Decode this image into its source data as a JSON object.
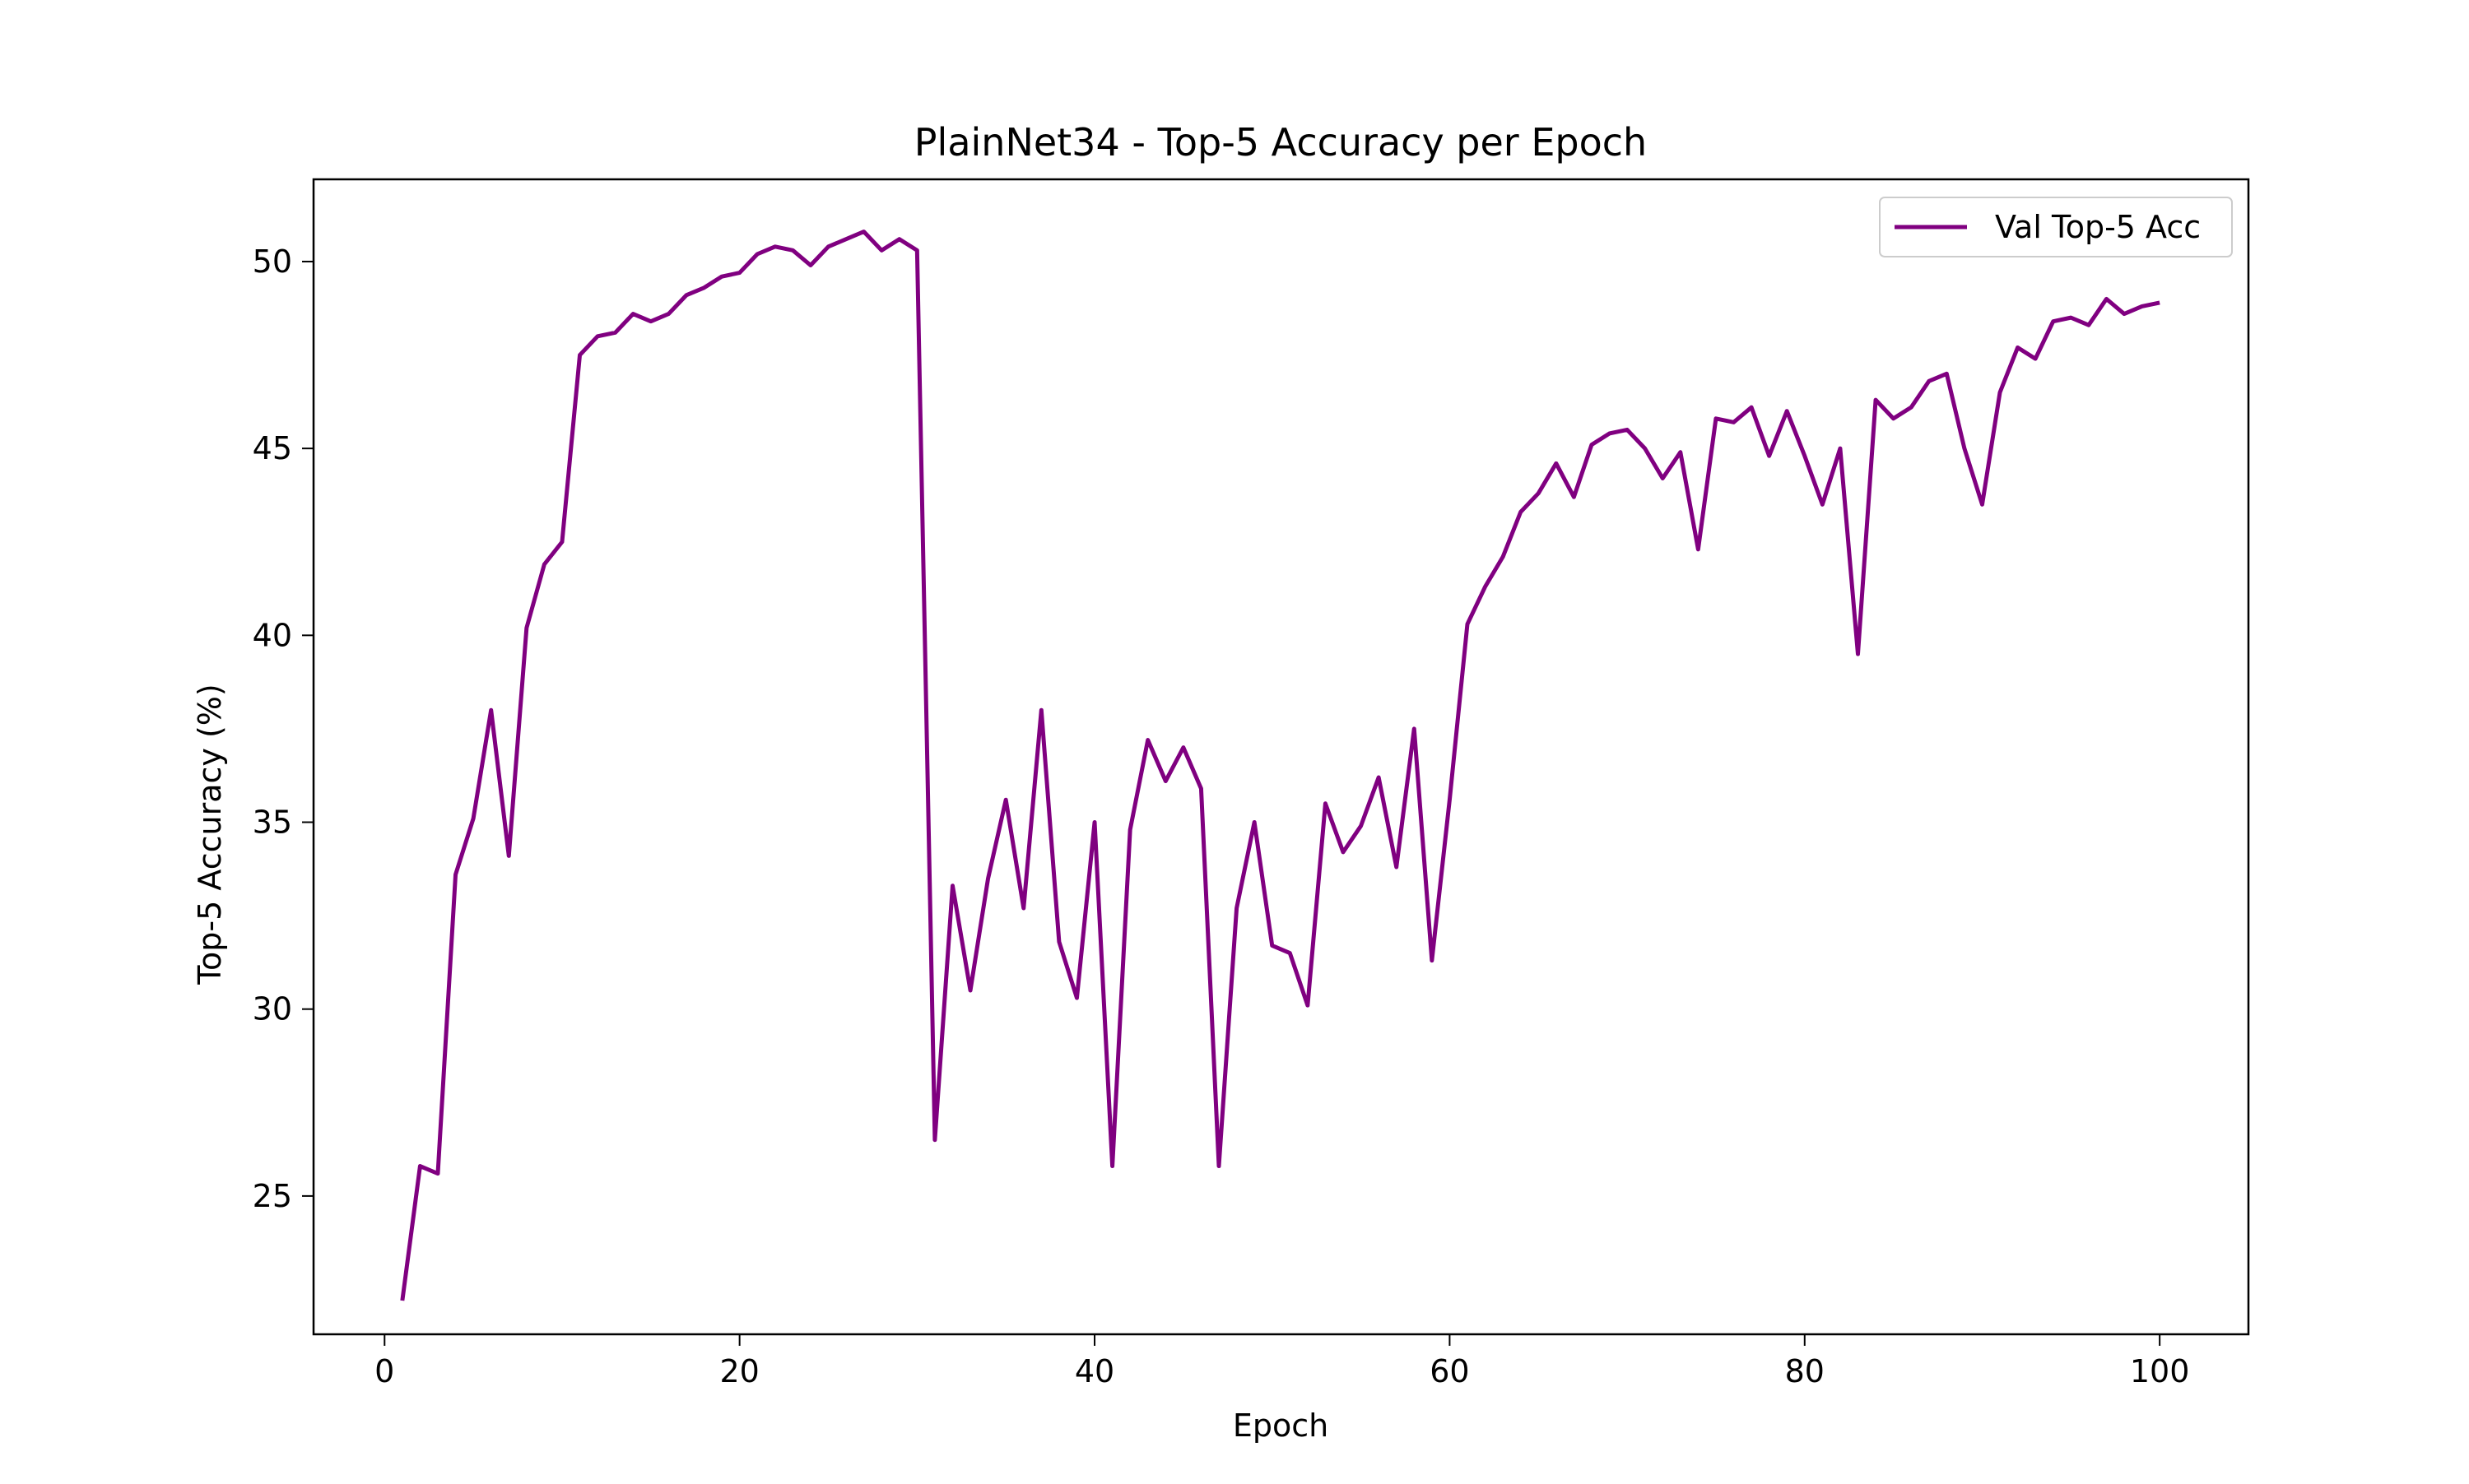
{
  "chart_data": {
    "type": "line",
    "title": "PlainNet34 - Top-5 Accuracy per Epoch",
    "xlabel": "Epoch",
    "ylabel": "Top-5 Accuracy (%)",
    "xlim": [
      -4,
      105
    ],
    "ylim": [
      21.3,
      52.2
    ],
    "xticks": [
      0,
      20,
      40,
      60,
      80,
      100
    ],
    "yticks": [
      25,
      30,
      35,
      40,
      45,
      50
    ],
    "grid": false,
    "legend_position": "top-right",
    "series": [
      {
        "name": "Val Top-5 Acc",
        "color": "#800080",
        "x": [
          1,
          2,
          3,
          4,
          5,
          6,
          7,
          8,
          9,
          10,
          11,
          12,
          13,
          14,
          15,
          16,
          17,
          18,
          19,
          20,
          21,
          22,
          23,
          24,
          25,
          26,
          27,
          28,
          29,
          30,
          31,
          32,
          33,
          34,
          35,
          36,
          37,
          38,
          39,
          40,
          41,
          42,
          43,
          44,
          45,
          46,
          47,
          48,
          49,
          50,
          51,
          52,
          53,
          54,
          55,
          56,
          57,
          58,
          59,
          60,
          61,
          62,
          63,
          64,
          65,
          66,
          67,
          68,
          69,
          70,
          71,
          72,
          73,
          74,
          75,
          76,
          77,
          78,
          79,
          80,
          81,
          82,
          83,
          84,
          85,
          86,
          87,
          88,
          89,
          90,
          91,
          92,
          93,
          94,
          95,
          96,
          97,
          98,
          99,
          100
        ],
        "values": [
          22.2,
          25.8,
          25.6,
          33.6,
          35.1,
          38.0,
          34.1,
          40.2,
          41.9,
          42.5,
          47.5,
          48.0,
          48.1,
          48.6,
          48.4,
          48.6,
          49.1,
          49.3,
          49.6,
          49.7,
          50.2,
          50.4,
          50.3,
          49.9,
          50.4,
          50.6,
          50.8,
          50.3,
          50.6,
          50.3,
          26.5,
          33.3,
          30.5,
          33.5,
          35.6,
          32.7,
          38.0,
          31.8,
          30.3,
          35.0,
          25.8,
          34.8,
          37.2,
          36.1,
          37.0,
          35.9,
          25.8,
          32.7,
          35.0,
          31.7,
          31.5,
          30.1,
          35.5,
          34.2,
          34.9,
          36.2,
          33.8,
          37.5,
          31.3,
          35.6,
          40.3,
          41.3,
          42.1,
          43.3,
          43.8,
          44.6,
          43.7,
          45.1,
          45.4,
          45.5,
          45.0,
          44.2,
          44.9,
          42.3,
          45.8,
          45.7,
          46.1,
          44.8,
          46.0,
          44.8,
          43.5,
          45.0,
          39.5,
          46.3,
          45.8,
          46.1,
          46.8,
          47.0,
          45.0,
          43.5,
          46.5,
          47.7,
          47.4,
          48.4,
          48.5,
          48.3,
          49.0,
          48.6,
          48.8,
          48.9
        ]
      }
    ]
  }
}
